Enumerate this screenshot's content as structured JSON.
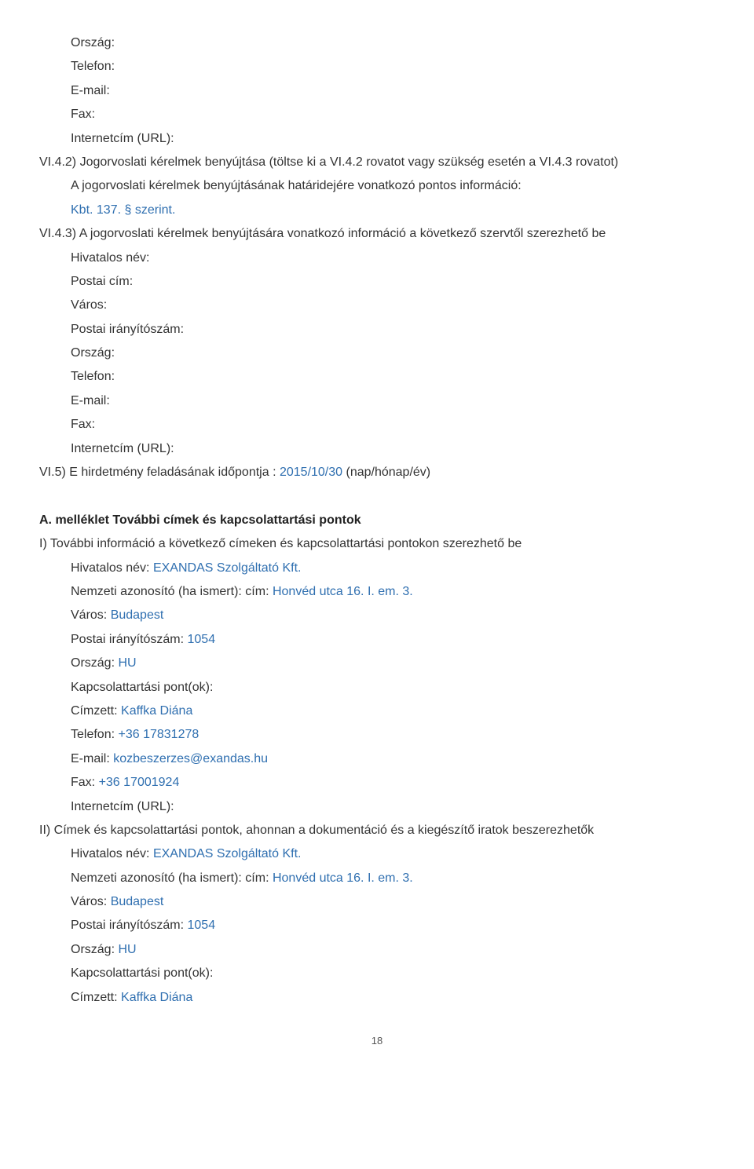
{
  "colors": {
    "text": "#333333",
    "value": "#2f6fb0",
    "background": "#ffffff"
  },
  "typography": {
    "font_family": "Segoe UI",
    "font_size_pt": 12,
    "line_height": 1.9
  },
  "sec1_fields": {
    "orszag": "Ország:",
    "telefon": "Telefon:",
    "email": "E-mail:",
    "fax": "Fax:",
    "url": "Internetcím (URL):"
  },
  "vi42": {
    "line1": "VI.4.2) Jogorvoslati kérelmek benyújtása (töltse ki a VI.4.2 rovatot vagy szükség esetén a VI.4.3 rovatot)",
    "line2_label": "A jogorvoslati kérelmek benyújtásának határidejére vonatkozó pontos információ:",
    "value": "Kbt. 137. § szerint."
  },
  "vi43": {
    "line1": "VI.4.3) A jogorvoslati kérelmek benyújtására vonatkozó információ a következő szervtől szerezhető be",
    "hivatalos": "Hivatalos név:",
    "postai": "Postai cím:",
    "varos": "Város:",
    "iranyito": "Postai irányítószám:",
    "orszag": "Ország:",
    "telefon": "Telefon:",
    "email": "E-mail:",
    "fax": "Fax:",
    "url": "Internetcím (URL):"
  },
  "vi5": {
    "label_pre": "VI.5) E hirdetmény feladásának időpontja : ",
    "date": "2015/10/30",
    "label_post": " (nap/hónap/év)"
  },
  "annexA": {
    "heading": "A. melléklet További címek és kapcsolattartási pontok",
    "sectionI": "I) További információ a következő címeken és kapcsolattartási pontokon szerezhető be",
    "sectionII": "II) Címek és kapcsolattartási pontok, ahonnan a dokumentáció és a kiegészítő iratok beszerezhetők"
  },
  "contactI": {
    "hivatalos_label": "Hivatalos név: ",
    "hivatalos_value": "EXANDAS Szolgáltató Kft.",
    "nemzeti_label": "Nemzeti azonosító (ha ismert): cím: ",
    "nemzeti_value": "Honvéd utca 16. I. em. 3.",
    "varos_label": "Város: ",
    "varos_value": "Budapest",
    "iranyito_label": "Postai irányítószám: ",
    "iranyito_value": "1054",
    "orszag_label": "Ország: ",
    "orszag_value": "HU",
    "kapcsolat": "Kapcsolattartási pont(ok):",
    "cimzett_label": "Címzett: ",
    "cimzett_value": "Kaffka Diána",
    "telefon_label": "Telefon: ",
    "telefon_value": "+36 17831278",
    "email_label": "E-mail: ",
    "email_value": "kozbeszerzes@exandas.hu",
    "fax_label": "Fax: ",
    "fax_value": "+36 17001924",
    "url": "Internetcím (URL):"
  },
  "contactII": {
    "hivatalos_label": "Hivatalos név: ",
    "hivatalos_value": "EXANDAS Szolgáltató Kft.",
    "nemzeti_label": "Nemzeti azonosító (ha ismert): cím: ",
    "nemzeti_value": "Honvéd utca 16. I. em. 3.",
    "varos_label": "Város: ",
    "varos_value": "Budapest",
    "iranyito_label": "Postai irányítószám: ",
    "iranyito_value": "1054",
    "orszag_label": "Ország: ",
    "orszag_value": "HU",
    "kapcsolat": "Kapcsolattartási pont(ok):",
    "cimzett_label": "Címzett: ",
    "cimzett_value": "Kaffka Diána"
  },
  "page_number": "18"
}
